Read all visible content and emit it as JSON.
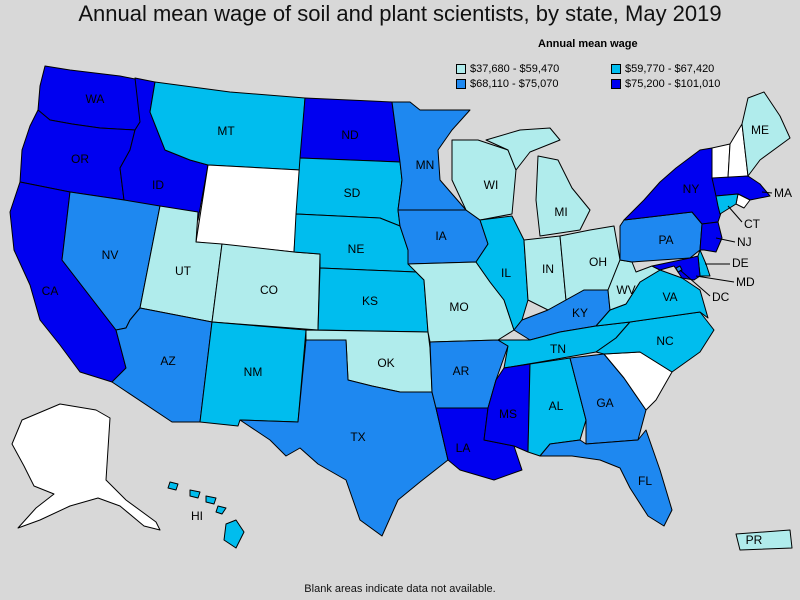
{
  "title": "Annual mean wage of soil and plant scientists, by state, May 2019",
  "legend": {
    "title": "Annual mean wage",
    "bins": [
      {
        "label": "$37,680 - $59,470",
        "color": "#b0ecec"
      },
      {
        "label": "$59,770 - $67,420",
        "color": "#00bdee"
      },
      {
        "label": "$68,110 - $75,070",
        "color": "#1e88f0"
      },
      {
        "label": "$75,200 - $101,010",
        "color": "#0000f0"
      }
    ],
    "no_data_color": "#ffffff"
  },
  "footnote": "Blank areas indicate data not available.",
  "states": {
    "WA": {
      "label": "WA",
      "bin": 3
    },
    "OR": {
      "label": "OR",
      "bin": 3
    },
    "CA": {
      "label": "CA",
      "bin": 3
    },
    "ID": {
      "label": "ID",
      "bin": 3
    },
    "NV": {
      "label": "NV",
      "bin": 2
    },
    "MT": {
      "label": "MT",
      "bin": 1
    },
    "WY": {
      "label": "",
      "bin": null
    },
    "UT": {
      "label": "UT",
      "bin": 0
    },
    "CO": {
      "label": "CO",
      "bin": 0
    },
    "AZ": {
      "label": "AZ",
      "bin": 2
    },
    "NM": {
      "label": "NM",
      "bin": 1
    },
    "ND": {
      "label": "ND",
      "bin": 3
    },
    "SD": {
      "label": "SD",
      "bin": 1
    },
    "NE": {
      "label": "NE",
      "bin": 1
    },
    "KS": {
      "label": "KS",
      "bin": 1
    },
    "OK": {
      "label": "OK",
      "bin": 0
    },
    "TX": {
      "label": "TX",
      "bin": 2
    },
    "MN": {
      "label": "MN",
      "bin": 2
    },
    "IA": {
      "label": "IA",
      "bin": 2
    },
    "MO": {
      "label": "MO",
      "bin": 0
    },
    "AR": {
      "label": "AR",
      "bin": 2
    },
    "LA": {
      "label": "LA",
      "bin": 3
    },
    "WI": {
      "label": "WI",
      "bin": 0
    },
    "IL": {
      "label": "IL",
      "bin": 1
    },
    "MS": {
      "label": "MS",
      "bin": 3
    },
    "MI": {
      "label": "MI",
      "bin": 0
    },
    "IN": {
      "label": "IN",
      "bin": 0
    },
    "OH": {
      "label": "OH",
      "bin": 0
    },
    "KY": {
      "label": "KY",
      "bin": 2
    },
    "TN": {
      "label": "TN",
      "bin": 1
    },
    "AL": {
      "label": "AL",
      "bin": 1
    },
    "GA": {
      "label": "GA",
      "bin": 2
    },
    "FL": {
      "label": "FL",
      "bin": 2
    },
    "SC": {
      "label": "",
      "bin": null
    },
    "NC": {
      "label": "NC",
      "bin": 1
    },
    "VA": {
      "label": "VA",
      "bin": 1
    },
    "WV": {
      "label": "WV",
      "bin": 0
    },
    "PA": {
      "label": "PA",
      "bin": 2
    },
    "NY": {
      "label": "NY",
      "bin": 3
    },
    "VT": {
      "label": "",
      "bin": null
    },
    "NH": {
      "label": "",
      "bin": null
    },
    "ME": {
      "label": "ME",
      "bin": 0
    },
    "MA": {
      "label": "MA",
      "bin": 3
    },
    "RI": {
      "label": "",
      "bin": null
    },
    "CT": {
      "label": "CT",
      "bin": 1
    },
    "NJ": {
      "label": "NJ",
      "bin": 3
    },
    "DE": {
      "label": "DE",
      "bin": 1
    },
    "MD": {
      "label": "MD",
      "bin": 3
    },
    "DC": {
      "label": "DC",
      "bin": 2
    },
    "AK": {
      "label": "",
      "bin": null
    },
    "HI": {
      "label": "HI",
      "bin": 1
    },
    "PR": {
      "label": "PR",
      "bin": 0
    }
  }
}
